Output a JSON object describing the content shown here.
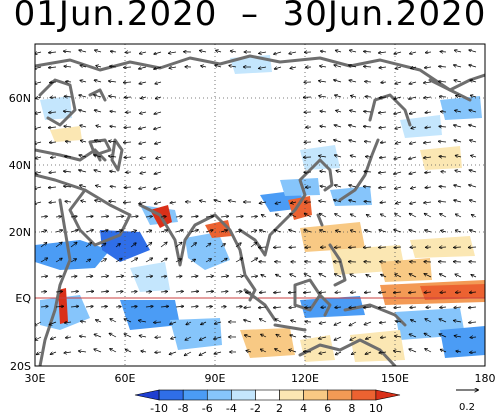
{
  "title": "01Jun.2020  –  30Jun.2020",
  "map": {
    "lon_labels": [
      "30E",
      "60E",
      "90E",
      "120E",
      "150E",
      "180"
    ],
    "lat_labels": [
      "60N",
      "40N",
      "20N",
      "EQ",
      "20S"
    ],
    "equator_line_color": "#c84040",
    "coastline_color": "#6e6e6e",
    "gridline_style": "dotted"
  },
  "colorbar": {
    "tick_labels": [
      "-10",
      "-8",
      "-6",
      "-4",
      "-2",
      "2",
      "4",
      "6",
      "8",
      "10"
    ],
    "colors": [
      "#1f3fd0",
      "#2f6ee8",
      "#4b9cf5",
      "#86c5fb",
      "#c4e6fd",
      "#ffffff",
      "#fbe7b3",
      "#f8c984",
      "#f39a55",
      "#ec6231",
      "#d93019"
    ]
  },
  "reference_vector": {
    "value": "0.2",
    "icon": "arrow-right-icon"
  }
}
